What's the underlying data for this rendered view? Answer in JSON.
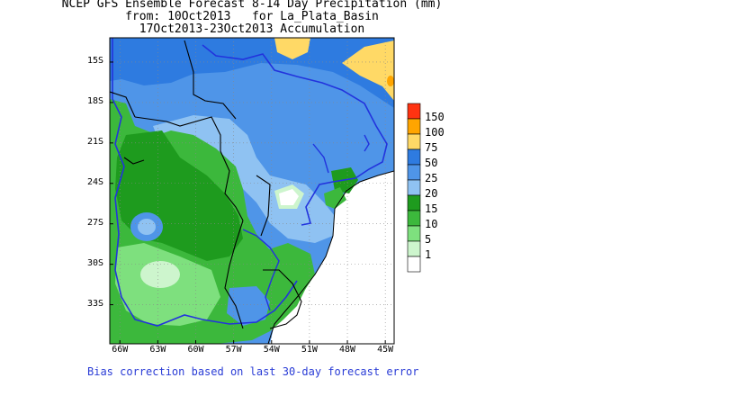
{
  "title": {
    "line1": "NCEP GFS Ensemble Forecast 8-14 Day Precipitation (mm)",
    "line2": "from: 10Oct2013   for La_Plata_Basin",
    "line3": "17Oct2013-23Oct2013 Accumulation"
  },
  "axes": {
    "y_ticks": [
      {
        "label": "15S",
        "lat": -15
      },
      {
        "label": "18S",
        "lat": -18
      },
      {
        "label": "21S",
        "lat": -21
      },
      {
        "label": "24S",
        "lat": -24
      },
      {
        "label": "27S",
        "lat": -27
      },
      {
        "label": "30S",
        "lat": -30
      },
      {
        "label": "33S",
        "lat": -33
      }
    ],
    "x_ticks": [
      {
        "label": "66W",
        "lon": -66
      },
      {
        "label": "63W",
        "lon": -63
      },
      {
        "label": "60W",
        "lon": -60
      },
      {
        "label": "57W",
        "lon": -57
      },
      {
        "label": "54W",
        "lon": -54
      },
      {
        "label": "51W",
        "lon": -51
      },
      {
        "label": "48W",
        "lon": -48
      },
      {
        "label": "45W",
        "lon": -45
      }
    ],
    "lon_range": [
      -66.8,
      -44.3
    ],
    "lat_range": [
      -35.9,
      -13.2
    ]
  },
  "legend": {
    "levels": [
      {
        "label": "150",
        "color": "#ff3311"
      },
      {
        "label": "100",
        "color": "#ffa500"
      },
      {
        "label": "75",
        "color": "#ffd966"
      },
      {
        "label": "50",
        "color": "#2e7be0"
      },
      {
        "label": "25",
        "color": "#4f95e8"
      },
      {
        "label": "20",
        "color": "#8fc2f2"
      },
      {
        "label": "15",
        "color": "#1e9b1e"
      },
      {
        "label": "10",
        "color": "#3cb83c"
      },
      {
        "label": "5",
        "color": "#7ee07e"
      },
      {
        "label": "1",
        "color": "#cdf5cd"
      }
    ],
    "zero_color": "#ffffff"
  },
  "colors": {
    "border_blue": "#2233dd",
    "border_black": "#000000",
    "grid": "#888888"
  },
  "footnote": "Bias correction based on last 30-day forecast error"
}
